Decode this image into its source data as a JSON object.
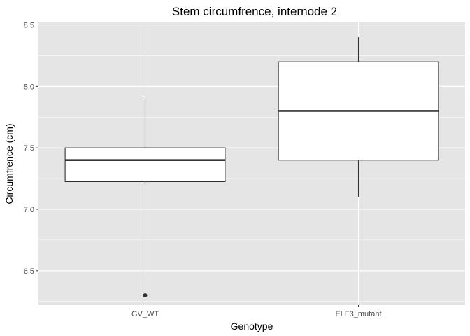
{
  "chart_data": {
    "type": "box",
    "title": "Stem circumfrence, internode 2",
    "xlabel": "Genotype",
    "ylabel": "Circumfrence (cm)",
    "ylim": [
      6.22,
      8.52
    ],
    "yticks": [
      6.5,
      7.0,
      7.5,
      8.0,
      8.5
    ],
    "ytick_labels": [
      "6.5",
      "7.0",
      "7.5",
      "8.0",
      "8.5"
    ],
    "categories": [
      "GV_WT",
      "ELF3_mutant"
    ],
    "boxes": [
      {
        "category": "GV_WT",
        "min": 7.2,
        "q1": 7.225,
        "median": 7.4,
        "q3": 7.5,
        "max": 7.9,
        "outliers": [
          6.3
        ]
      },
      {
        "category": "ELF3_mutant",
        "min": 7.1,
        "q1": 7.4,
        "median": 7.8,
        "q3": 8.2,
        "max": 8.4,
        "outliers": []
      }
    ],
    "grid": true,
    "colors": {
      "panel": "#e5e5e5",
      "grid": "#ffffff",
      "box_fill": "#ffffff",
      "box_line": "#333333"
    }
  }
}
